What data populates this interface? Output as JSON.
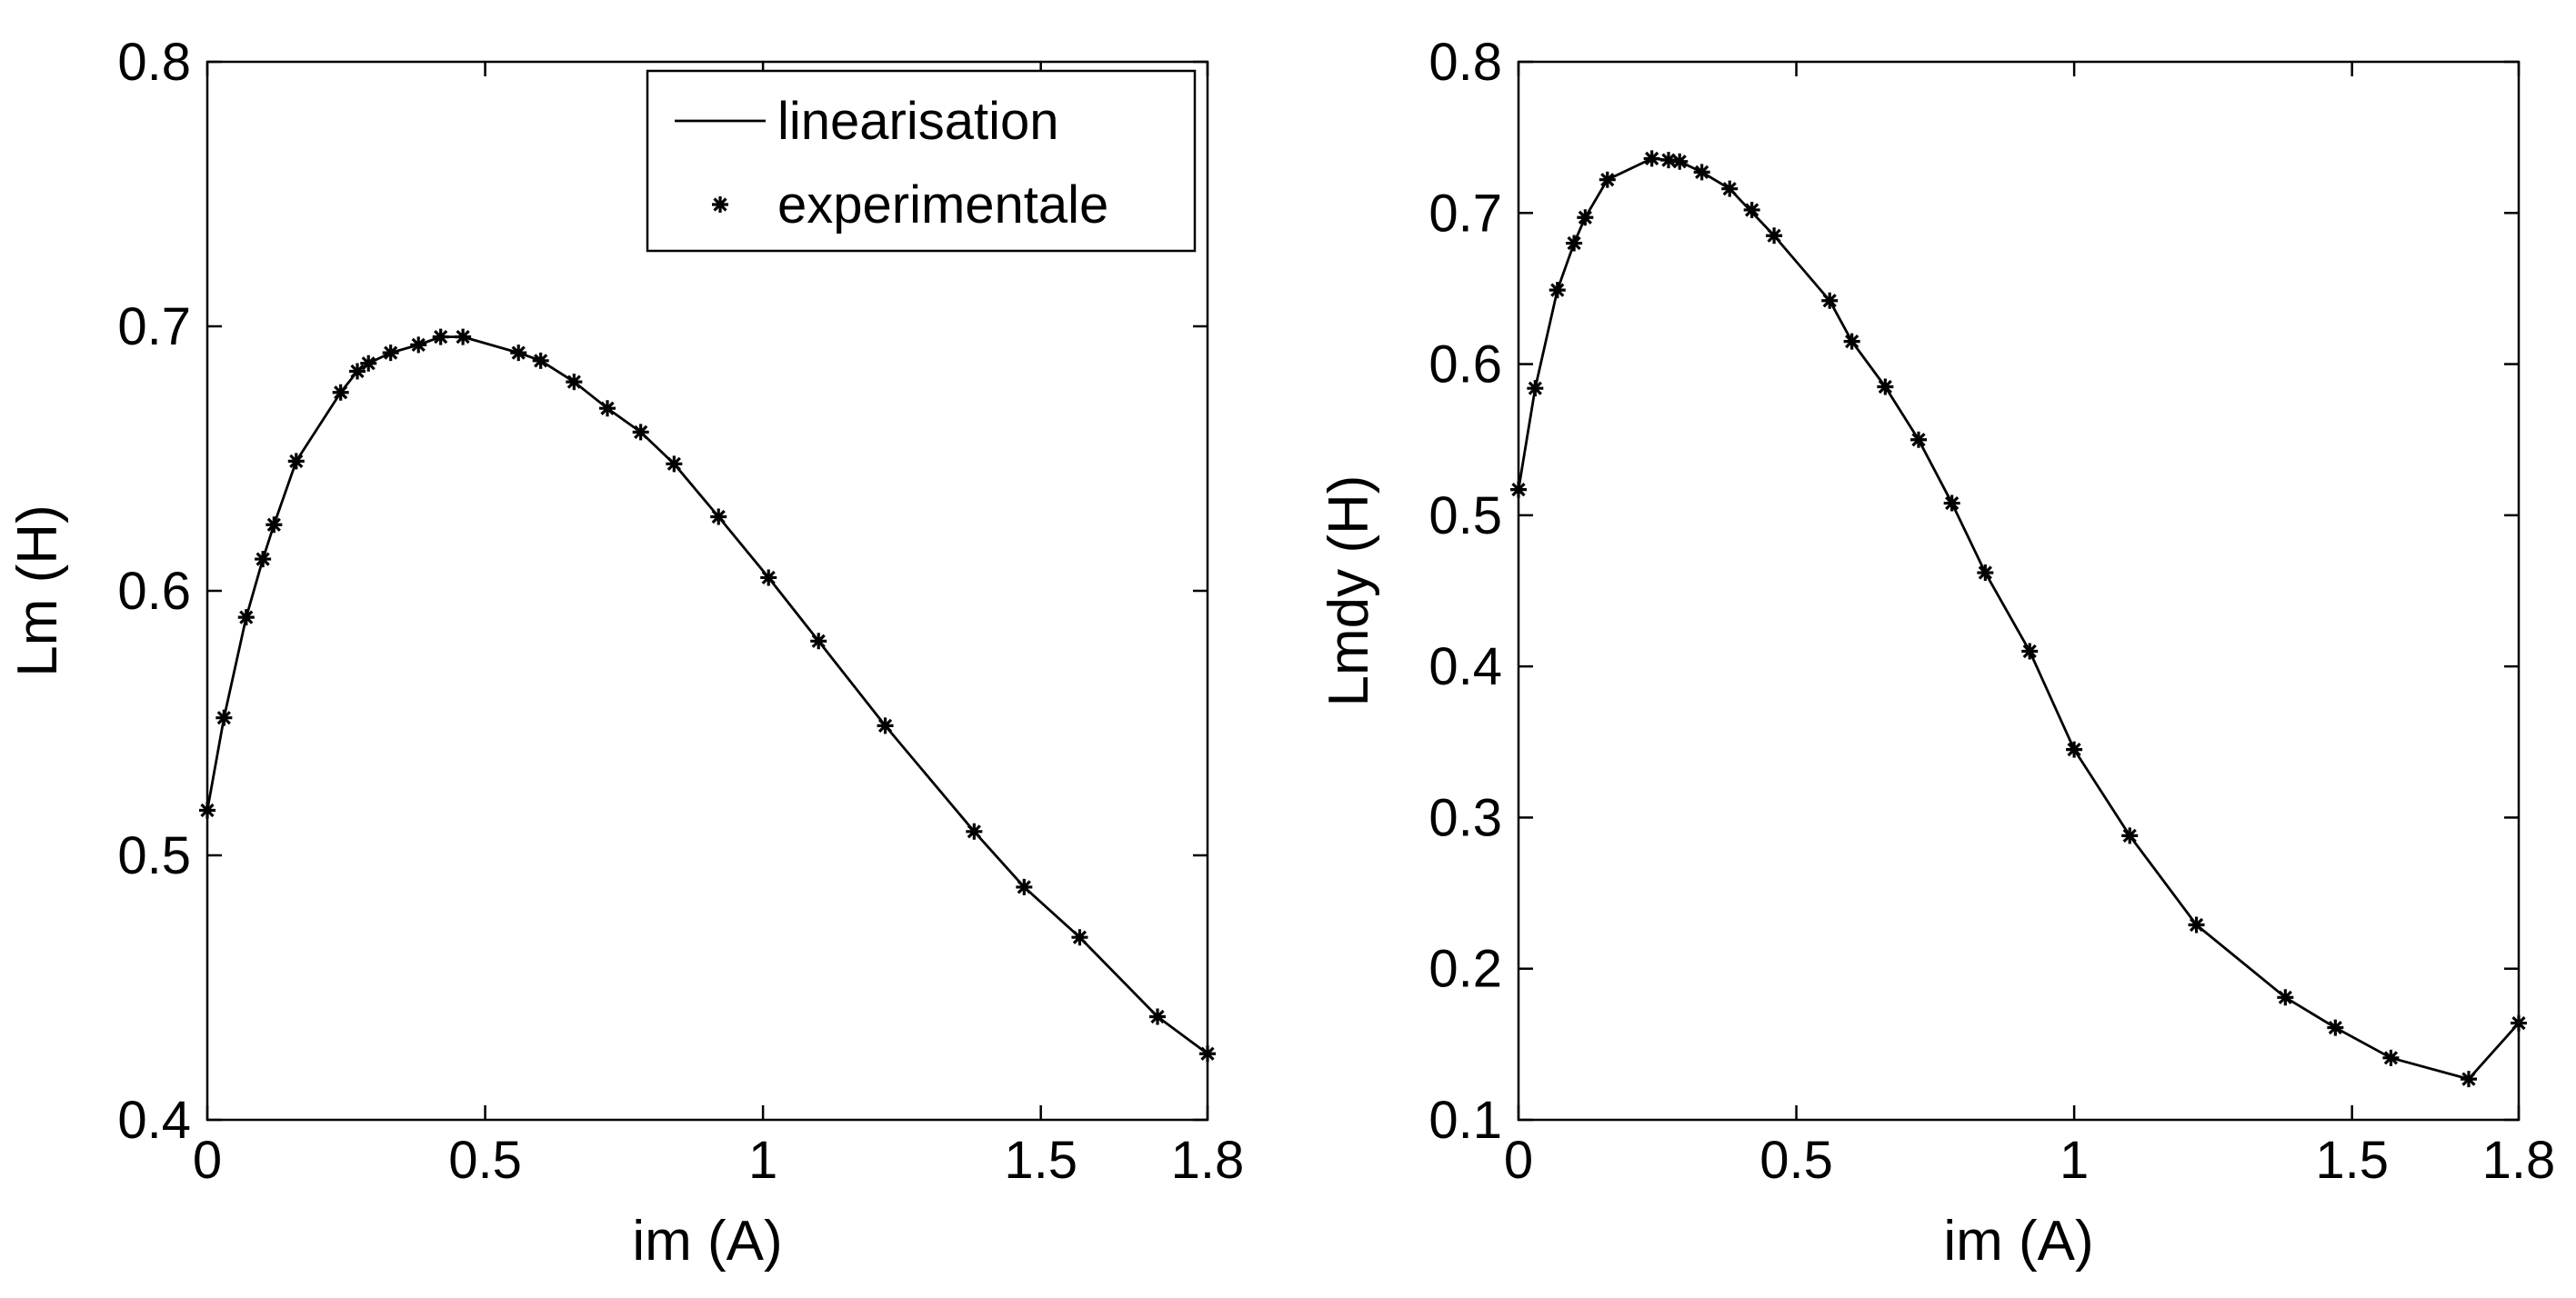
{
  "chart_data": [
    {
      "type": "line",
      "title": "",
      "xlabel": "im (A)",
      "ylabel": "Lm (H)",
      "xlim": [
        0,
        1.8
      ],
      "ylim": [
        0.4,
        0.8
      ],
      "xticks": [
        0,
        0.5,
        1,
        1.5,
        1.8
      ],
      "xtick_labels": [
        "0",
        "0.5",
        "1",
        "1.5",
        "1.8"
      ],
      "yticks": [
        0.4,
        0.5,
        0.6,
        0.7,
        0.8
      ],
      "ytick_labels": [
        "0.4",
        "0.5",
        "0.6",
        "0.7",
        "0.8"
      ],
      "grid": false,
      "legend": {
        "position": "top-right",
        "entries": [
          {
            "label": "linearisation",
            "style": "line"
          },
          {
            "label": "experimentale",
            "style": "star"
          }
        ]
      },
      "series": [
        {
          "name": "linearisation",
          "style": "line",
          "x": [
            0,
            0.03,
            0.07,
            0.1,
            0.12,
            0.16,
            0.24,
            0.27,
            0.29,
            0.33,
            0.38,
            0.42,
            0.46,
            0.56,
            0.6,
            0.66,
            0.72,
            0.78,
            0.84,
            0.92,
            1.01,
            1.1,
            1.22,
            1.38,
            1.47,
            1.57,
            1.71,
            1.8
          ],
          "y": [
            0.517,
            0.552,
            0.59,
            0.612,
            0.625,
            0.649,
            0.675,
            0.683,
            0.686,
            0.69,
            0.693,
            0.696,
            0.696,
            0.69,
            0.687,
            0.679,
            0.669,
            0.66,
            0.648,
            0.628,
            0.605,
            0.581,
            0.549,
            0.509,
            0.488,
            0.469,
            0.439,
            0.425
          ]
        },
        {
          "name": "experimentale",
          "style": "star",
          "x": [
            0,
            0.03,
            0.07,
            0.1,
            0.12,
            0.16,
            0.24,
            0.27,
            0.29,
            0.33,
            0.38,
            0.42,
            0.46,
            0.56,
            0.6,
            0.66,
            0.72,
            0.78,
            0.84,
            0.92,
            1.01,
            1.1,
            1.22,
            1.38,
            1.47,
            1.57,
            1.71,
            1.8
          ],
          "y": [
            0.517,
            0.552,
            0.59,
            0.612,
            0.625,
            0.649,
            0.675,
            0.683,
            0.686,
            0.69,
            0.693,
            0.696,
            0.696,
            0.69,
            0.687,
            0.679,
            0.669,
            0.66,
            0.648,
            0.628,
            0.605,
            0.581,
            0.549,
            0.509,
            0.488,
            0.469,
            0.439,
            0.425
          ]
        }
      ]
    },
    {
      "type": "line",
      "title": "",
      "xlabel": "im (A)",
      "ylabel": "Lmdy (H)",
      "xlim": [
        0,
        1.8
      ],
      "ylim": [
        0.1,
        0.8
      ],
      "xticks": [
        0,
        0.5,
        1,
        1.5,
        1.8
      ],
      "xtick_labels": [
        "0",
        "0.5",
        "1",
        "1.5",
        "1.8"
      ],
      "yticks": [
        0.1,
        0.2,
        0.3,
        0.4,
        0.5,
        0.6,
        0.7,
        0.8
      ],
      "ytick_labels": [
        "0.1",
        "0.2",
        "0.3",
        "0.4",
        "0.5",
        "0.6",
        "0.7",
        "0.8"
      ],
      "grid": false,
      "series": [
        {
          "name": "linearisation",
          "style": "line",
          "x": [
            0,
            0.03,
            0.07,
            0.1,
            0.12,
            0.16,
            0.24,
            0.27,
            0.29,
            0.33,
            0.38,
            0.46,
            0.56,
            0.6,
            0.66,
            0.72,
            0.78,
            0.84,
            0.92,
            1.0,
            1.1,
            1.22,
            1.38,
            1.47,
            1.57,
            1.71,
            1.8
          ],
          "y": [
            0.517,
            0.584,
            0.649,
            0.68,
            0.697,
            0.722,
            0.736,
            0.735,
            0.734,
            0.727,
            0.716,
            0.685,
            0.642,
            0.615,
            0.585,
            0.55,
            0.508,
            0.462,
            0.41,
            0.345,
            0.288,
            0.229,
            0.181,
            0.161,
            0.141,
            0.127,
            0.164
          ]
        },
        {
          "name": "experimentale",
          "style": "star",
          "x": [
            0,
            0.03,
            0.07,
            0.1,
            0.12,
            0.16,
            0.24,
            0.27,
            0.29,
            0.33,
            0.38,
            0.42,
            0.46,
            0.56,
            0.6,
            0.66,
            0.72,
            0.78,
            0.84,
            0.92,
            1.0,
            1.1,
            1.22,
            1.38,
            1.47,
            1.57,
            1.71,
            1.8
          ],
          "y": [
            0.517,
            0.584,
            0.649,
            0.68,
            0.697,
            0.722,
            0.736,
            0.735,
            0.734,
            0.727,
            0.716,
            0.702,
            0.685,
            0.642,
            0.615,
            0.585,
            0.55,
            0.508,
            0.462,
            0.41,
            0.345,
            0.288,
            0.229,
            0.181,
            0.161,
            0.141,
            0.127,
            0.164
          ]
        }
      ]
    }
  ]
}
